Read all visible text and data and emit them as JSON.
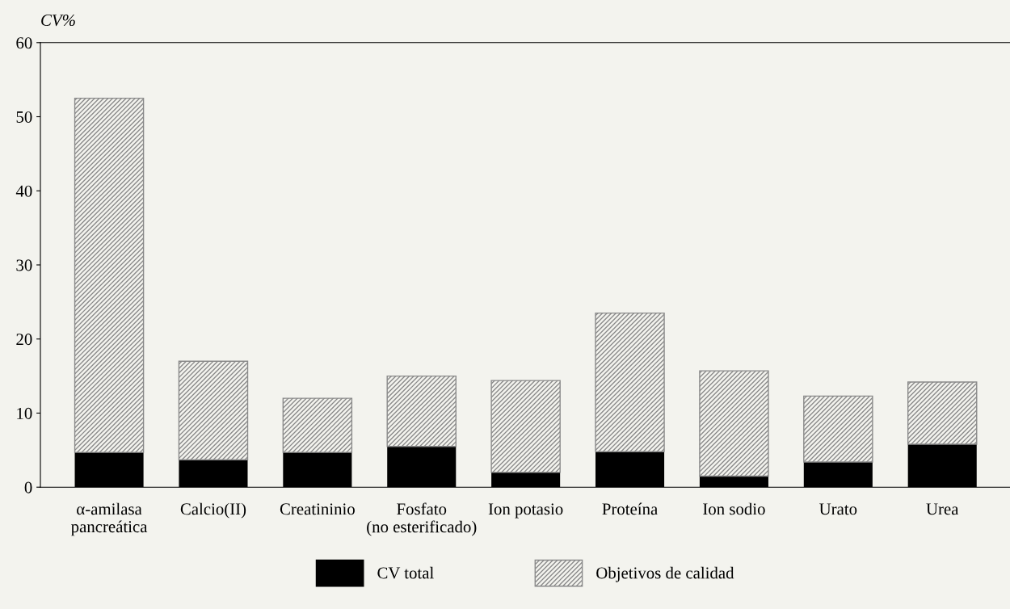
{
  "chart_data": {
    "type": "bar",
    "ylabel": "CV%",
    "stacked": true,
    "categories": [
      "α-amilasa\npancreática",
      "Calcio(II)",
      "Creatininio",
      "Fosfato\n(no esterificado)",
      "Ion potasio",
      "Proteína",
      "Ion sodio",
      "Urato",
      "Urea"
    ],
    "series": [
      {
        "name": "CV total",
        "color": "#000000",
        "values": [
          4.7,
          3.7,
          4.7,
          5.5,
          2.0,
          4.8,
          1.5,
          3.4,
          5.8
        ]
      },
      {
        "name": "Objetivos de calidad",
        "color": "#8a8a8a",
        "values": [
          47.8,
          13.3,
          7.3,
          9.5,
          12.4,
          18.7,
          14.2,
          8.9,
          8.4
        ]
      }
    ],
    "ylim": [
      0,
      60
    ],
    "yticks": [
      0,
      10,
      20,
      30,
      40,
      50,
      60
    ],
    "grid": false,
    "legend": "bottom"
  }
}
